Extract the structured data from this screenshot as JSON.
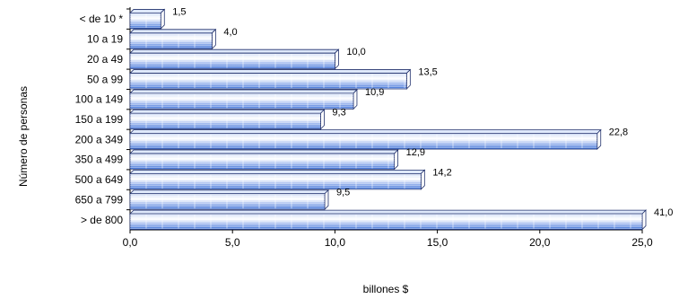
{
  "chart_data": {
    "type": "bar",
    "orientation": "horizontal",
    "categories": [
      "< de 10 *",
      "10 a 19",
      "20 a 49",
      "50 a 99",
      "100 a 149",
      "150 a 199",
      "200 a 349",
      "350 a 499",
      "500 a 649",
      "650 a 799",
      "> de 800"
    ],
    "values": [
      1.5,
      4.0,
      10.0,
      13.5,
      10.9,
      9.3,
      22.8,
      12.9,
      14.2,
      9.5,
      41.0
    ],
    "value_labels": [
      "1,5",
      "4,0",
      "10,0",
      "13,5",
      "10,9",
      "9,3",
      "22,8",
      "12,9",
      "14,2",
      "9,5",
      "41,0"
    ],
    "xlim": [
      0,
      25
    ],
    "xticks": [
      "0,0",
      "5,0",
      "10,0",
      "15,0",
      "20,0",
      "25,0"
    ],
    "xlabel": "billones $",
    "ylabel": "Número de personas",
    "grid": false,
    "legend": "none",
    "bar_color": "#3b6fd6",
    "bar_light_color": "#dfe9fb",
    "bar_edge_color": "#1f2f6b"
  }
}
